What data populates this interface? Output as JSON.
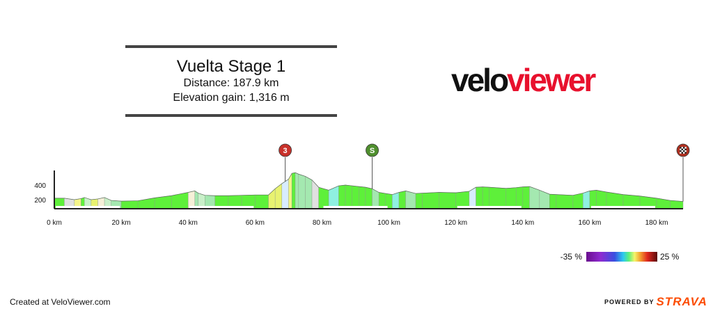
{
  "stage": {
    "title": "Vuelta Stage 1",
    "distance": "Distance: 187.9 km",
    "elevation_gain": "Elevation gain: 1,316 m"
  },
  "logo": {
    "part1": "velo",
    "part2": "viewer"
  },
  "footer": {
    "credit": "Created at VeloViewer.com",
    "powered_by": "POWERED BY",
    "brand": "STRAVA"
  },
  "colors": {
    "logo_red": "#e8112d",
    "strava_orange": "#fc4c02",
    "climb_marker": "#c8312a",
    "sprint_marker": "#4f8f2e",
    "finish_marker": "#b03020"
  },
  "chart_data": {
    "type": "area",
    "xlabel": "",
    "ylabel": "",
    "xlim": [
      0,
      187.9
    ],
    "x_ticks": [
      0,
      20,
      40,
      60,
      80,
      100,
      120,
      140,
      160,
      180
    ],
    "x_tick_labels": [
      "0 km",
      "20 km",
      "40 km",
      "60 km",
      "80 km",
      "100 km",
      "120 km",
      "140 km",
      "160 km",
      "180 km"
    ],
    "y_ticks": [
      200,
      400
    ],
    "y_tick_labels": [
      "200",
      "400"
    ],
    "series": [
      {
        "x": [
          0,
          3,
          6,
          8,
          9,
          11,
          13,
          15,
          17,
          20,
          25,
          30,
          35,
          40,
          42,
          43,
          45,
          48,
          52,
          56,
          60,
          64,
          66,
          68,
          70,
          71,
          72,
          73,
          75,
          77,
          79,
          82,
          85,
          87,
          89,
          91,
          93,
          95,
          97,
          99,
          101,
          103,
          105,
          108,
          110,
          115,
          120,
          124,
          126,
          128,
          130,
          135,
          138,
          140,
          142,
          145,
          148,
          150,
          155,
          158,
          160,
          162,
          165,
          170,
          175,
          180,
          184,
          187.9
        ],
        "elevation": [
          220,
          220,
          200,
          215,
          230,
          200,
          210,
          230,
          190,
          180,
          185,
          225,
          255,
          300,
          320,
          290,
          260,
          255,
          255,
          260,
          265,
          265,
          350,
          420,
          480,
          560,
          570,
          550,
          520,
          470,
          370,
          330,
          390,
          400,
          390,
          380,
          370,
          350,
          300,
          285,
          270,
          300,
          320,
          285,
          290,
          300,
          295,
          315,
          370,
          375,
          370,
          355,
          365,
          375,
          380,
          330,
          275,
          270,
          260,
          290,
          320,
          330,
          305,
          270,
          250,
          220,
          190,
          175
        ],
        "gradient": [
          0,
          -7,
          7,
          -1,
          -15,
          5,
          10,
          -20,
          -3,
          0,
          1,
          1,
          1,
          10,
          -3,
          -15,
          -2,
          0,
          0,
          0,
          0,
          4,
          4,
          3,
          8,
          1,
          -2,
          -2,
          -3,
          -5,
          -1,
          2,
          0.5,
          -0.5,
          -0.5,
          -1,
          -1,
          -2.5,
          -1,
          -1,
          1.5,
          1,
          -1.5,
          0.2,
          0.2,
          0,
          0.5,
          2.5,
          0.2,
          -0.2,
          -0.3,
          0.3,
          0.5,
          0.2,
          -1.7,
          -1.8,
          -0.2,
          -0.2,
          1,
          1.5,
          0.5,
          -1,
          -0.7,
          -0.4,
          -0.6,
          -0.75,
          -0.4
        ]
      }
    ],
    "markers": [
      {
        "type": "climb",
        "label": "3",
        "x": 69
      },
      {
        "type": "sprint",
        "label": "S",
        "x": 95
      },
      {
        "type": "finish",
        "label": "",
        "x": 187.9
      }
    ],
    "gradient_legend": {
      "min_label": "-35 %",
      "max_label": "25 %",
      "min": -35,
      "max": 25
    }
  }
}
